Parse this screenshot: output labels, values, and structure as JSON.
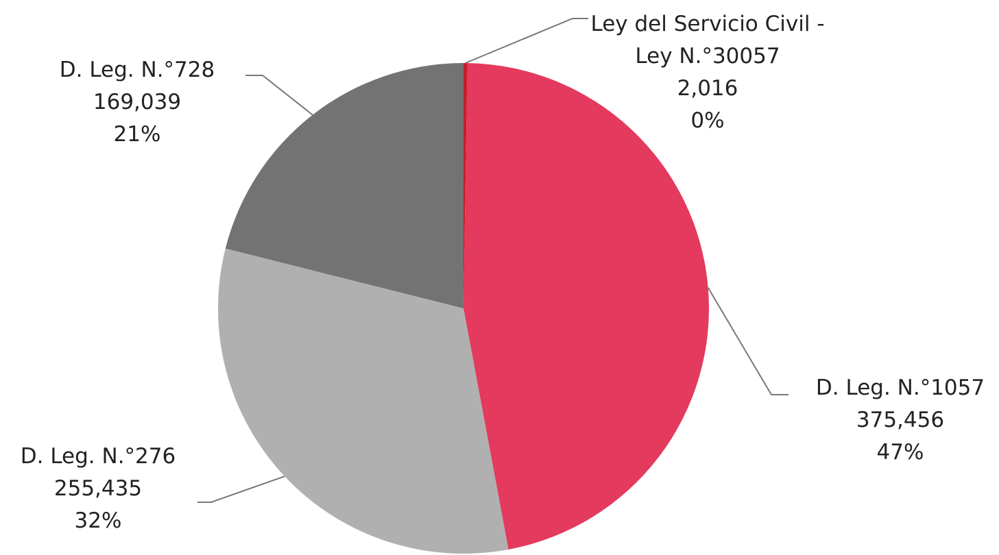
{
  "chart_data": {
    "type": "pie",
    "categories": [
      "Ley del Servicio Civil - Ley N.°30057",
      "D. Leg. N.°1057",
      "D. Leg. N.°276",
      "D. Leg. N.°728"
    ],
    "values": [
      2016,
      375456,
      255435,
      169039
    ],
    "value_labels": [
      "2,016",
      "375,456",
      "255,435",
      "169,039"
    ],
    "percent_labels": [
      "0%",
      "47%",
      "32%",
      "21%"
    ],
    "colors": [
      "#c0202a",
      "#e33a5e",
      "#b0b0b0",
      "#737373"
    ]
  }
}
